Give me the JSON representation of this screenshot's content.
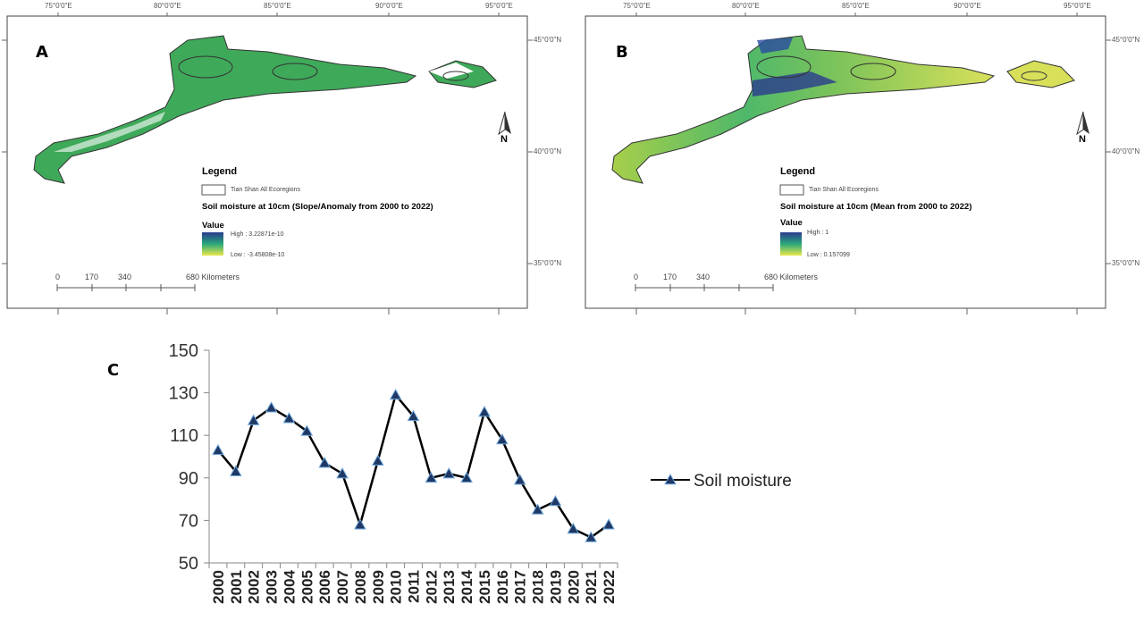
{
  "panels": {
    "a": {
      "letter": "A",
      "lon_labels": [
        "75°0'0\"E",
        "80°0'0\"E",
        "85°0'0\"E",
        "90°0'0\"E",
        "95°0'0\"E"
      ],
      "lat_labels": [
        "45°0'0\"N",
        "40°0'0\"N",
        "35°0'0\"N"
      ],
      "legend": {
        "title": "Legend",
        "boundary_label": "Tian Shan All Ecoregions",
        "layer_title": "Soil moisture at 10cm (Slope/Anomaly from 2000 to 2022)",
        "value_label": "Value",
        "high_label": "High : 3.22871e-10",
        "low_label": "Low : -3.45808e-10"
      },
      "scale": {
        "labels": [
          "0",
          "170",
          "340",
          "680 Kilometers"
        ]
      },
      "north": "N",
      "colors": {
        "fill": "#3fa95a",
        "ramp_high": "#2a3b8f",
        "ramp_mid": "#2aa87a",
        "ramp_low": "#e8e84a"
      }
    },
    "b": {
      "letter": "B",
      "lon_labels": [
        "75°0'0\"E",
        "80°0'0\"E",
        "85°0'0\"E",
        "90°0'0\"E",
        "95°0'0\"E"
      ],
      "lat_labels": [
        "45°0'0\"N",
        "40°0'0\"N",
        "35°0'0\"N"
      ],
      "legend": {
        "title": "Legend",
        "boundary_label": "Tian Shan All Ecoregions",
        "layer_title": "Soil moisture at 10cm (Mean from 2000 to 2022)",
        "value_label": "Value",
        "high_label": "High : 1",
        "low_label": "Low : 0.157099"
      },
      "scale": {
        "labels": [
          "0",
          "170",
          "340",
          "680 Kilometers"
        ]
      },
      "north": "N",
      "colors": {
        "ramp_high": "#2a3b8f",
        "ramp_mid": "#2aa87a",
        "ramp_low": "#e8e84a"
      }
    },
    "c": {
      "letter": "C"
    }
  },
  "chart_data": {
    "type": "line",
    "title": "",
    "xlabel": "",
    "ylabel": "",
    "x": [
      "2000",
      "2001",
      "2002",
      "2003",
      "2004",
      "2005",
      "2006",
      "2007",
      "2008",
      "2009",
      "2010",
      "2011",
      "2012",
      "2013",
      "2014",
      "2015",
      "2016",
      "2017",
      "2018",
      "2019",
      "2020",
      "2021",
      "2022"
    ],
    "series": [
      {
        "name": "Soil moisture",
        "values": [
          103,
          93,
          117,
          123,
          118,
          112,
          97,
          92,
          68,
          98,
          129,
          119,
          90,
          92,
          90,
          121,
          108,
          89,
          75,
          79,
          66,
          62,
          68
        ],
        "marker": "triangle",
        "line_color": "#000000",
        "marker_color": "#1f3864"
      }
    ],
    "ylim": [
      50,
      150
    ],
    "yticks": [
      "50",
      "70",
      "90",
      "110",
      "130",
      "150"
    ],
    "grid": false,
    "legend_position": "right"
  }
}
